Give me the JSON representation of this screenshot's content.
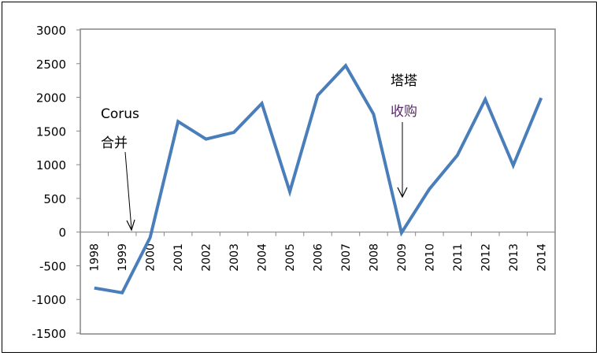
{
  "chart_data": {
    "type": "line",
    "title": "",
    "xlabel": "",
    "ylabel": "",
    "categories": [
      "1998",
      "1999",
      "2000",
      "2001",
      "2002",
      "2003",
      "2004",
      "2005",
      "2006",
      "2007",
      "2008",
      "2009",
      "2010",
      "2011",
      "2012",
      "2013",
      "2014"
    ],
    "series": [
      {
        "values": [
          -830,
          -900,
          -80,
          1640,
          1380,
          1480,
          1910,
          600,
          2030,
          2470,
          1750,
          -10,
          640,
          1140,
          1970,
          990,
          1990
        ]
      }
    ],
    "ylim": [
      -1500,
      3000
    ],
    "yticks": [
      3000,
      2500,
      2000,
      1500,
      1000,
      500,
      0,
      -500,
      -1000,
      -1500
    ],
    "grid": false,
    "legend": "none",
    "colors": {
      "line": "#4a7ebb",
      "axis": "#868686",
      "annotation_accent": "#7b2c8c"
    },
    "annotations": [
      {
        "lines": [
          "Corus",
          "合并"
        ],
        "points_to": "1999-2000"
      },
      {
        "lines": [
          "塔塔",
          "收购"
        ],
        "points_to": "2009"
      }
    ]
  }
}
